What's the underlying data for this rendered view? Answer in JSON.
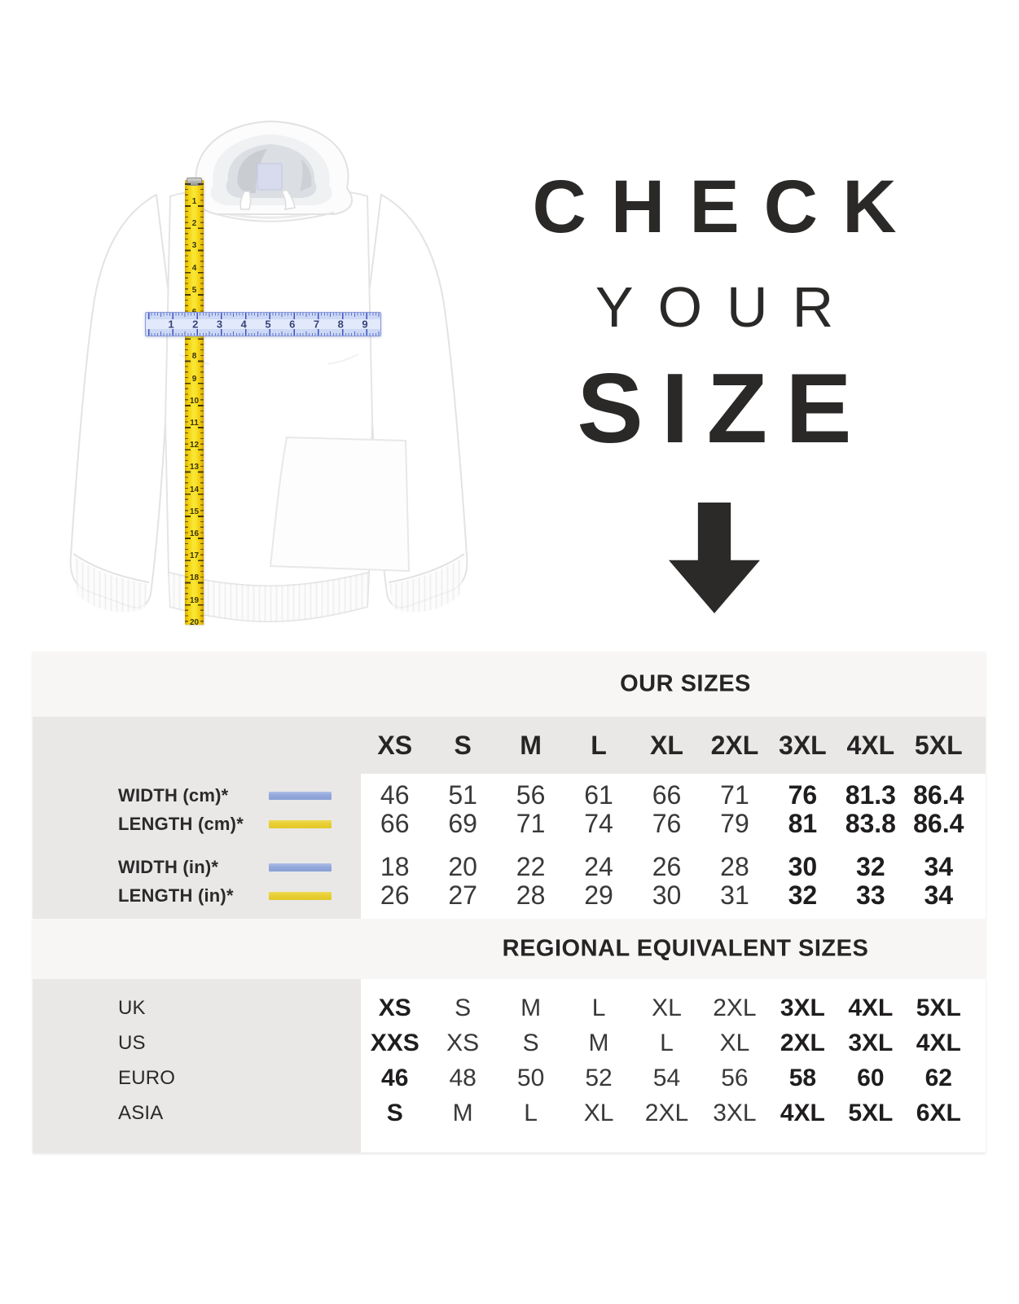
{
  "hero": {
    "line1": "CHECK",
    "line2": "YOUR",
    "line3": "SIZE",
    "arrow_icon": "down-arrow"
  },
  "illustration": {
    "garment": "white pullover hoodie",
    "vertical_tape": {
      "meaning": "length measurement",
      "color": "#f3d913",
      "numbers": [
        1,
        2,
        3,
        4,
        5,
        6,
        7,
        8,
        9,
        10,
        11,
        12,
        13,
        14,
        15,
        16,
        17,
        18,
        19,
        20
      ]
    },
    "horizontal_ruler": {
      "meaning": "width measurement",
      "color": "#ccd8f4",
      "numbers": [
        1,
        2,
        3,
        4,
        5,
        6,
        7,
        8,
        9
      ]
    }
  },
  "table": {
    "our_sizes_header": "OUR SIZES",
    "regional_header": "REGIONAL EQUIVALENT SIZES",
    "size_columns": [
      "XS",
      "S",
      "M",
      "L",
      "XL",
      "2XL",
      "3XL",
      "4XL",
      "5XL"
    ],
    "measurement_rows": [
      {
        "label": "WIDTH (cm)*",
        "legend": "blue",
        "group": 1,
        "values": [
          "46",
          "51",
          "56",
          "61",
          "66",
          "71",
          "76",
          "81.3",
          "86.4"
        ]
      },
      {
        "label": "LENGTH (cm)*",
        "legend": "yellow",
        "group": 1,
        "values": [
          "66",
          "69",
          "71",
          "74",
          "76",
          "79",
          "81",
          "83.8",
          "86.4"
        ]
      },
      {
        "label": "WIDTH (in)*",
        "legend": "blue",
        "group": 2,
        "values": [
          "18",
          "20",
          "22",
          "24",
          "26",
          "28",
          "30",
          "32",
          "34"
        ]
      },
      {
        "label": "LENGTH (in)*",
        "legend": "yellow",
        "group": 2,
        "values": [
          "26",
          "27",
          "28",
          "29",
          "30",
          "31",
          "32",
          "33",
          "34"
        ]
      }
    ],
    "regional_rows": [
      {
        "label": "UK",
        "values": [
          "XS",
          "S",
          "M",
          "L",
          "XL",
          "2XL",
          "3XL",
          "4XL",
          "5XL"
        ]
      },
      {
        "label": "US",
        "values": [
          "XXS",
          "XS",
          "S",
          "M",
          "L",
          "XL",
          "2XL",
          "3XL",
          "4XL"
        ]
      },
      {
        "label": "EURO",
        "values": [
          "46",
          "48",
          "50",
          "52",
          "54",
          "56",
          "58",
          "60",
          "62"
        ]
      },
      {
        "label": "ASIA",
        "values": [
          "S",
          "M",
          "L",
          "XL",
          "2XL",
          "3XL",
          "4XL",
          "5XL",
          "6XL"
        ]
      }
    ],
    "legend_colors": {
      "blue": "#93a8da",
      "yellow": "#e8cf35"
    }
  }
}
